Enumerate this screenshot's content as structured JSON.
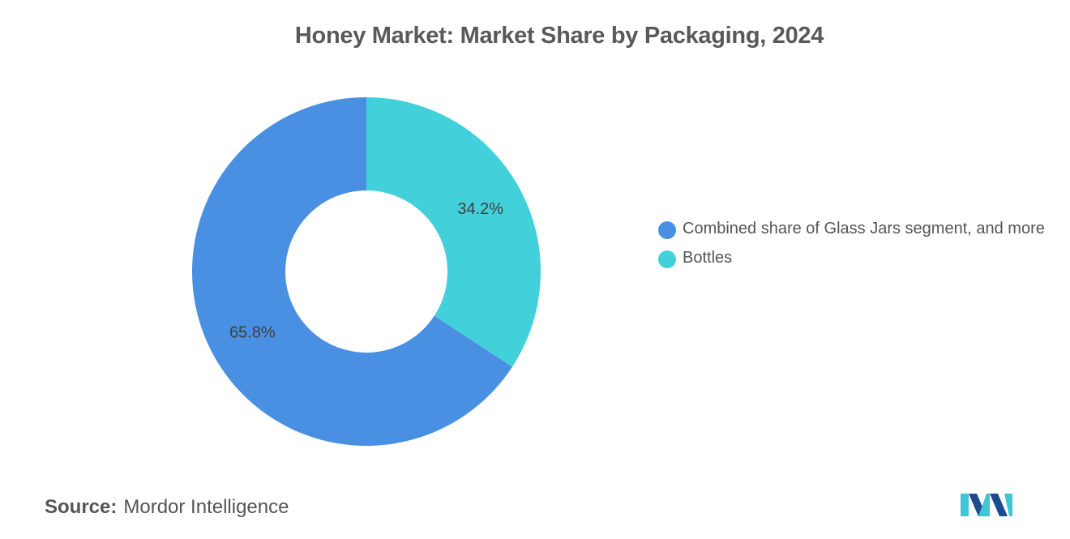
{
  "chart_data": {
    "type": "pie",
    "variant": "donut",
    "title": "Honey Market: Market Share by Packaging, 2024",
    "slices": [
      {
        "name": "Combined share of Glass Jars segment, and more",
        "value": 65.8,
        "label": "65.8%",
        "color": "#4a90e2"
      },
      {
        "name": "Bottles",
        "value": 34.2,
        "label": "34.2%",
        "color": "#42d1db"
      }
    ],
    "legend_placement": "right"
  },
  "source": {
    "label": "Source:",
    "text": "Mordor Intelligence"
  },
  "logo": {
    "icon": "mordor-intelligence-logo-icon",
    "colors": [
      "#1e4b8f",
      "#3fc6d6"
    ]
  }
}
